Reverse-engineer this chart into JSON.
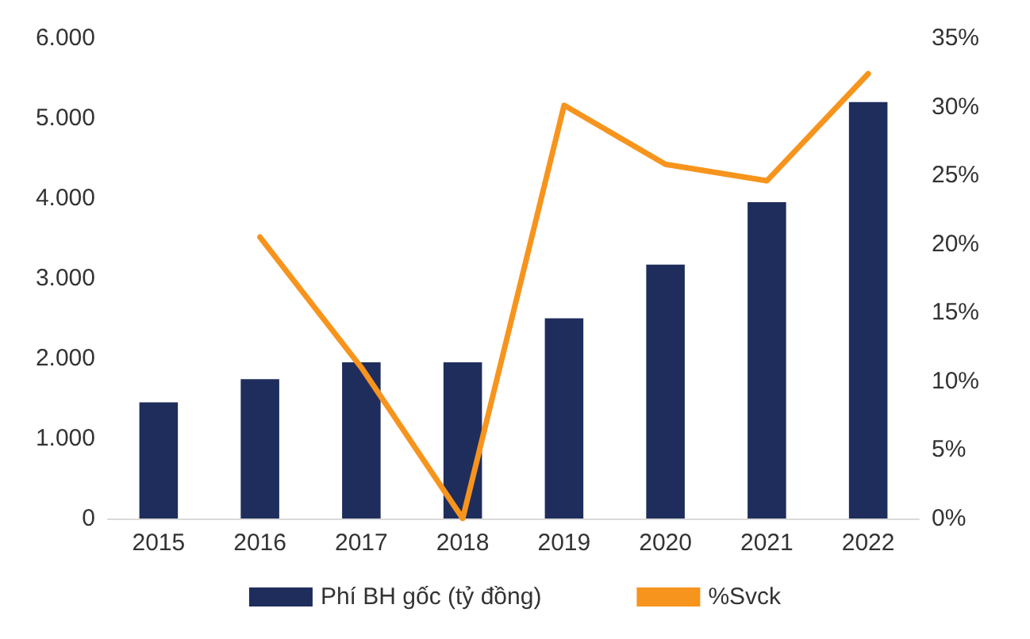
{
  "chart_data": {
    "type": "bar",
    "categories": [
      "2015",
      "2016",
      "2017",
      "2018",
      "2019",
      "2020",
      "2021",
      "2022"
    ],
    "series": [
      {
        "name": "Phí BH gốc (tỷ đồng)",
        "color": "#1f2d5c",
        "values": [
          1450,
          1740,
          1950,
          1950,
          2500,
          3170,
          3950,
          5200
        ]
      },
      {
        "name": "%Svck",
        "type": "line",
        "axis": "y2",
        "color": "#f7941d",
        "values": [
          null,
          20.5,
          11,
          0,
          30.1,
          25.8,
          24.6,
          32.4
        ]
      }
    ],
    "ylim": [
      0,
      6000
    ],
    "yticks": [
      {
        "value": 0,
        "label": "0"
      },
      {
        "value": 1000,
        "label": "1.000"
      },
      {
        "value": 2000,
        "label": "2.000"
      },
      {
        "value": 3000,
        "label": "3.000"
      },
      {
        "value": 4000,
        "label": "4.000"
      },
      {
        "value": 5000,
        "label": "5.000"
      },
      {
        "value": 6000,
        "label": "6.000"
      }
    ],
    "y2lim": [
      0,
      35
    ],
    "y2ticks": [
      {
        "value": 0,
        "label": "0%"
      },
      {
        "value": 5,
        "label": "5%"
      },
      {
        "value": 10,
        "label": "10%"
      },
      {
        "value": 15,
        "label": "15%"
      },
      {
        "value": 20,
        "label": "20%"
      },
      {
        "value": 25,
        "label": "25%"
      },
      {
        "value": 30,
        "label": "30%"
      },
      {
        "value": 35,
        "label": "35%"
      }
    ],
    "grid": false,
    "legend": "bottom",
    "marker": "none",
    "line_style": "solid"
  }
}
